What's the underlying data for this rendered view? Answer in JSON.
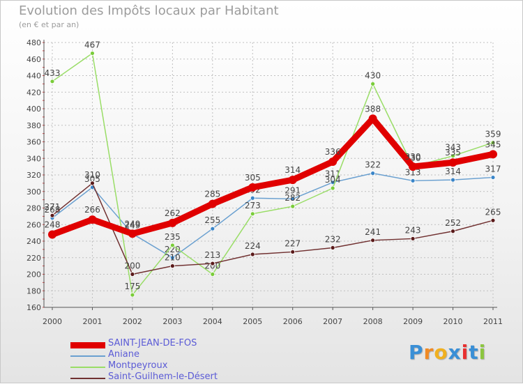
{
  "header": {
    "title": "Evolution des Impôts locaux par Habitant",
    "subtitle": "(en € et par an)"
  },
  "brand": {
    "text": "Proxiti",
    "letters": [
      "P",
      "r",
      "o",
      "x",
      "i",
      "t",
      "i"
    ],
    "colors": [
      "#3a8fd6",
      "#f08a24",
      "#f0b020",
      "#3a8fd6",
      "#e83030",
      "#3a8fd6",
      "#8cc63f"
    ]
  },
  "chart_data": {
    "type": "line",
    "title": "Evolution des Impôts locaux par Habitant",
    "subtitle": "(en € et par an)",
    "xlabel": "",
    "ylabel": "",
    "x": [
      "2000",
      "2001",
      "2002",
      "2003",
      "2004",
      "2005",
      "2006",
      "2007",
      "2008",
      "2009",
      "2010",
      "2011"
    ],
    "ylim": [
      160,
      480
    ],
    "yticks": [
      160,
      180,
      200,
      220,
      240,
      260,
      280,
      300,
      320,
      340,
      360,
      380,
      400,
      420,
      440,
      460,
      480
    ],
    "grid": true,
    "legend_position": "bottom-left",
    "series": [
      {
        "name": "SAINT-JEAN-DE-FOS",
        "color": "#e00000",
        "marker": "#e00000",
        "weight": "thick",
        "values": [
          248,
          266,
          249,
          262,
          285,
          305,
          314,
          336,
          388,
          330,
          335,
          345
        ]
      },
      {
        "name": "Aniane",
        "color": "#6aa0d0",
        "marker": "#3a85c8",
        "weight": "thin",
        "values": [
          268,
          305,
          249,
          220,
          255,
          292,
          291,
          311,
          322,
          313,
          314,
          317
        ]
      },
      {
        "name": "Montpeyroux",
        "color": "#99dd66",
        "marker": "#7acc3a",
        "weight": "thin",
        "values": [
          433,
          467,
          175,
          235,
          200,
          273,
          282,
          304,
          430,
          330,
          343,
          359
        ]
      },
      {
        "name": "Saint-Guilhem-le-Désert",
        "color": "#703030",
        "marker": "#5a1a1a",
        "weight": "thin",
        "values": [
          271,
          310,
          200,
          210,
          213,
          224,
          227,
          232,
          241,
          243,
          252,
          265
        ]
      }
    ]
  }
}
